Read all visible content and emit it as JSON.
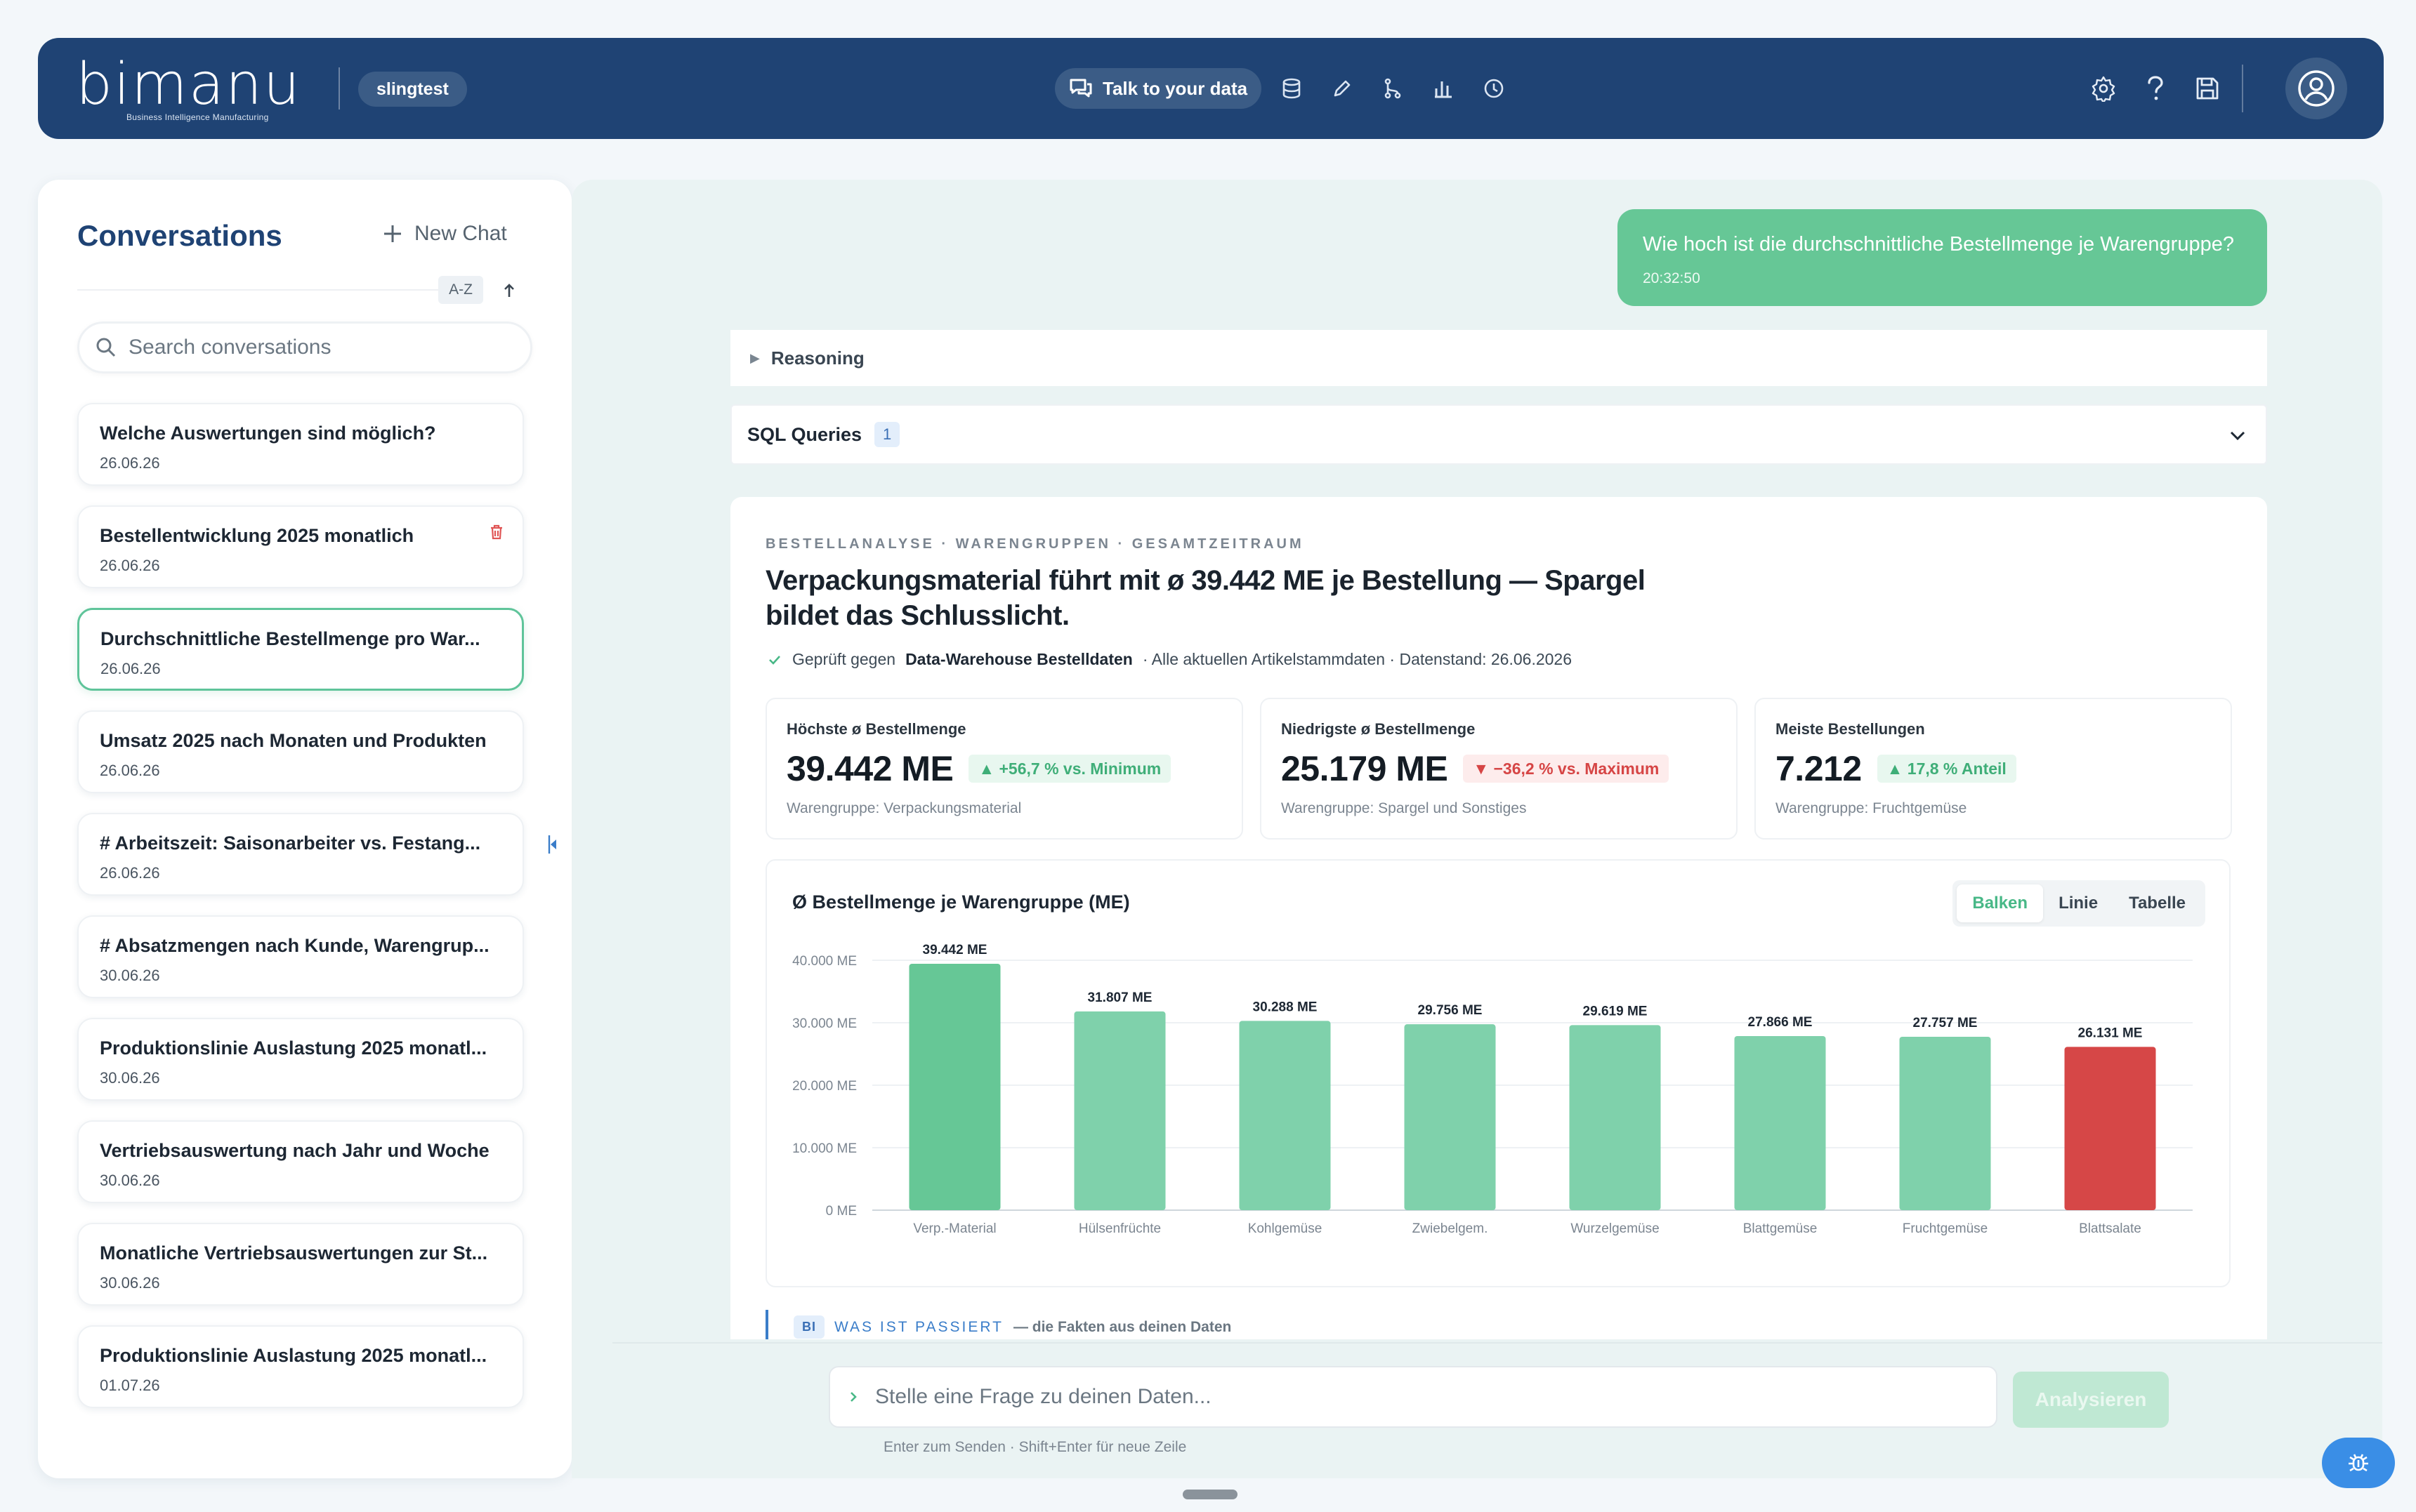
{
  "header": {
    "logo": "bimanu",
    "logo_subtitle": "Business Intelligence Manufacturing",
    "tenant": "slingtest",
    "nav": {
      "talk_label": "Talk to your data",
      "icons": [
        "chat-icon",
        "database-icon",
        "pencil-icon",
        "flow-icon",
        "bar-chart-icon",
        "clock-icon"
      ]
    },
    "right_icons": [
      "gear-icon",
      "help-icon",
      "save-icon",
      "user-icon"
    ]
  },
  "sidebar": {
    "title": "Conversations",
    "new_chat": "New Chat",
    "sort": "A-Z",
    "search_placeholder": "Search conversations",
    "conversations": [
      {
        "title": "Welche Auswertungen sind möglich?",
        "date": "26.06.26"
      },
      {
        "title": "Bestellentwicklung 2025 monatlich",
        "date": "26.06.26"
      },
      {
        "title": "Durchschnittliche Bestellmenge pro War...",
        "date": "26.06.26"
      },
      {
        "title": "Umsatz 2025 nach Monaten und Produkten",
        "date": "26.06.26"
      },
      {
        "title": "# Arbeitszeit: Saisonarbeiter vs. Festang...",
        "date": "26.06.26"
      },
      {
        "title": "# Absatzmengen nach Kunde, Warengrup...",
        "date": "30.06.26"
      },
      {
        "title": "Produktionslinie Auslastung 2025 monatl...",
        "date": "30.06.26"
      },
      {
        "title": "Vertriebsauswertung nach Jahr und Woche",
        "date": "30.06.26"
      },
      {
        "title": "Monatliche Vertriebsauswertungen zur St...",
        "date": "30.06.26"
      },
      {
        "title": "Produktionslinie Auslastung 2025 monatl...",
        "date": "01.07.26"
      }
    ],
    "active_index": 2,
    "hover_index": 1
  },
  "chat": {
    "user_message": {
      "text": "Wie hoch ist die durchschnittliche Bestellmenge je Warengruppe?",
      "time": "20:32:50"
    },
    "reasoning_label": "Reasoning",
    "sql_label": "SQL Queries",
    "sql_count": "1",
    "answer": {
      "eyebrow": "BESTELLANALYSE · WARENGRUPPEN · GESAMTZEITRAUM",
      "headline": "Verpackungsmaterial führt mit ø 39.442 ME je Bestellung — Spargel bildet das Schlusslicht.",
      "verified_prefix": "Geprüft gegen",
      "verified_source": "Data-Warehouse Bestelldaten",
      "verified_suffix": "· Alle aktuellen Artikelstammdaten · Datenstand: 26.06.2026",
      "kpis": [
        {
          "label": "Höchste ø Bestellmenge",
          "value": "39.442 ME",
          "badge": "▲ +56,7 % vs. Minimum",
          "trend": "up",
          "sub": "Warengruppe: Verpackungsmaterial"
        },
        {
          "label": "Niedrigste ø Bestellmenge",
          "value": "25.179 ME",
          "badge": "▼ −36,2 % vs. Maximum",
          "trend": "down",
          "sub": "Warengruppe: Spargel und Sonstiges"
        },
        {
          "label": "Meiste Bestellungen",
          "value": "7.212",
          "badge": "▲ 17,8 % Anteil",
          "trend": "up",
          "sub": "Warengruppe: Fruchtgemüse"
        }
      ],
      "chart_title": "Ø Bestellmenge je Warengruppe (ME)",
      "chart_tabs": [
        "Balken",
        "Linie",
        "Tabelle"
      ],
      "chart_tab_active": 0,
      "section_tag": "BI",
      "section_title": "WAS IST PASSIERT",
      "section_desc": "— die Fakten aus deinen Daten"
    }
  },
  "chart_data": {
    "type": "bar",
    "title": "Ø Bestellmenge je Warengruppe (ME)",
    "categories": [
      "Verp.-Material",
      "Hülsenfrüchte",
      "Kohlgemüse",
      "Zwiebelgem.",
      "Wurzelgemüse",
      "Blattgemüse",
      "Fruchtgemüse",
      "Blattsalate"
    ],
    "values": [
      39442,
      31807,
      30288,
      29756,
      29619,
      27866,
      27757,
      26131
    ],
    "data_labels": [
      "39.442 ME",
      "31.807 ME",
      "30.288 ME",
      "29.756 ME",
      "29.619 ME",
      "27.866 ME",
      "27.757 ME",
      "26.131 ME"
    ],
    "y_ticks": [
      0,
      10000,
      20000,
      30000,
      40000
    ],
    "y_tick_labels": [
      "0 ME",
      "10.000 ME",
      "20.000 ME",
      "30.000 ME",
      "40.000 ME"
    ],
    "ylim": [
      0,
      40000
    ],
    "colors": {
      "max": "#66c796",
      "normal": "#7fd1ab",
      "min": "#d64747"
    },
    "grid": true,
    "legend": "none"
  },
  "composer": {
    "placeholder": "Stelle eine Frage zu deinen Daten...",
    "submit": "Analysieren",
    "hint": "Enter zum Senden · Shift+Enter für neue Zeile"
  }
}
